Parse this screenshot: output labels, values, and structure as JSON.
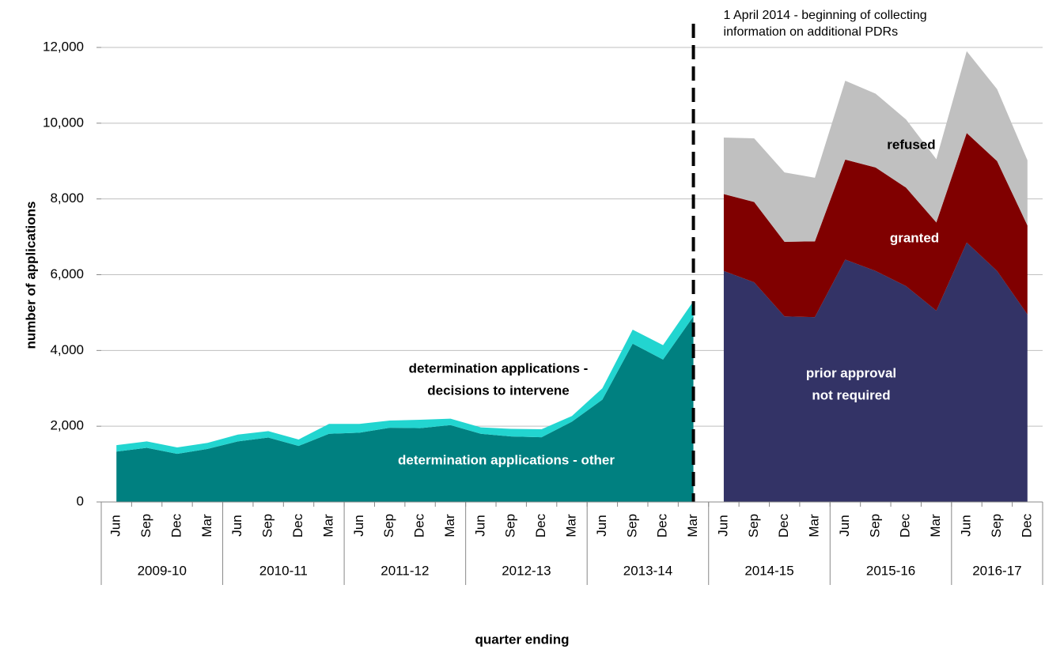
{
  "chart_data": {
    "type": "stacked_area",
    "y_label": "number of applications",
    "x_label": "quarter ending",
    "categories": [
      "Jun",
      "Sep",
      "Dec",
      "Mar",
      "Jun",
      "Sep",
      "Dec",
      "Mar",
      "Jun",
      "Sep",
      "Dec",
      "Mar",
      "Jun",
      "Sep",
      "Dec",
      "Mar",
      "Jun",
      "Sep",
      "Dec",
      "Mar",
      "Jun",
      "Sep",
      "Dec",
      "Mar",
      "Jun",
      "Sep",
      "Dec",
      "Mar",
      "Jun",
      "Sep",
      "Dec"
    ],
    "year_groups": [
      {
        "label": "2009-10",
        "span": 4
      },
      {
        "label": "2010-11",
        "span": 4
      },
      {
        "label": "2011-12",
        "span": 4
      },
      {
        "label": "2012-13",
        "span": 4
      },
      {
        "label": "2013-14",
        "span": 4
      },
      {
        "label": "2014-15",
        "span": 4
      },
      {
        "label": "2015-16",
        "span": 4
      },
      {
        "label": "2016-17",
        "span": 3
      }
    ],
    "series": [
      {
        "name": "determination applications - other",
        "color": "#008080",
        "values": [
          1330,
          1430,
          1270,
          1400,
          1600,
          1700,
          1480,
          1800,
          1830,
          1960,
          1950,
          2030,
          1800,
          1730,
          1710,
          2120,
          2700,
          4180,
          3760,
          4900,
          null,
          null,
          null,
          null,
          null,
          null,
          null,
          null,
          null,
          null,
          null
        ]
      },
      {
        "name": "determination applications - decisions to intervene",
        "color": "#22d5d0",
        "values": [
          170,
          170,
          170,
          160,
          180,
          170,
          170,
          260,
          230,
          190,
          220,
          170,
          170,
          200,
          210,
          150,
          300,
          370,
          380,
          400,
          null,
          null,
          null,
          null,
          null,
          null,
          null,
          null,
          null,
          null,
          null
        ]
      },
      {
        "name": "prior approval not required",
        "color": "#333366",
        "values": [
          null,
          null,
          null,
          null,
          null,
          null,
          null,
          null,
          null,
          null,
          null,
          null,
          null,
          null,
          null,
          null,
          null,
          null,
          null,
          null,
          6100,
          5800,
          4900,
          4880,
          6400,
          6100,
          5700,
          5050,
          6850,
          6100,
          4950
        ]
      },
      {
        "name": "granted",
        "color": "#800000",
        "values": [
          null,
          null,
          null,
          null,
          null,
          null,
          null,
          null,
          null,
          null,
          null,
          null,
          null,
          null,
          null,
          null,
          null,
          null,
          null,
          null,
          2030,
          2120,
          1970,
          2000,
          2640,
          2730,
          2600,
          2330,
          2890,
          2900,
          2350
        ]
      },
      {
        "name": "refused",
        "color": "#c0c0c0",
        "values": [
          null,
          null,
          null,
          null,
          null,
          null,
          null,
          null,
          null,
          null,
          null,
          null,
          null,
          null,
          null,
          null,
          null,
          null,
          null,
          null,
          1490,
          1680,
          1830,
          1680,
          2080,
          1950,
          1800,
          1670,
          2160,
          1900,
          1720
        ]
      }
    ],
    "series_labels": [
      [
        "determination applications - other"
      ],
      [
        "determination applications -",
        "decisions to intervene"
      ],
      [
        "prior approval",
        "not required"
      ],
      [
        "granted"
      ],
      [
        "refused"
      ]
    ],
    "event_annotation": [
      "1 April 2014 - beginning of collecting",
      "information on additional PDRs"
    ],
    "ylim": [
      0,
      12000
    ],
    "yticks": [
      0,
      {
        "value": 2000,
        "label": "2,000"
      },
      {
        "value": 4000,
        "label": "4,000"
      },
      {
        "value": 6000,
        "label": "6,000"
      },
      {
        "value": 8000,
        "label": "8,000"
      },
      {
        "value": 10000,
        "label": "10,000"
      },
      {
        "value": 12000,
        "label": "12,000"
      }
    ],
    "grid": true
  }
}
